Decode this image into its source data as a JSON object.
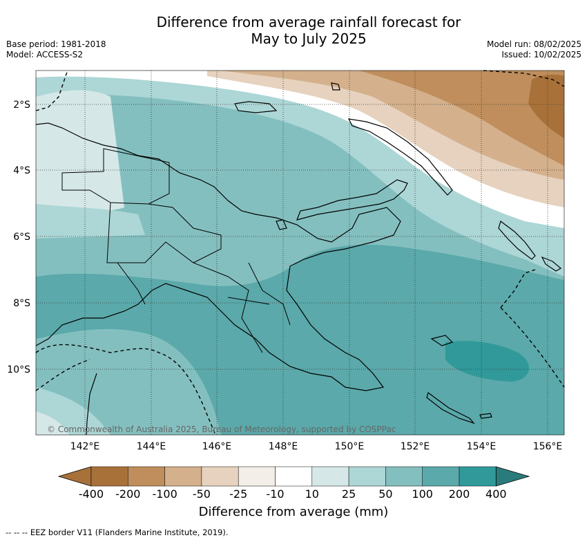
{
  "title_line1": "Difference from average rainfall forecast for",
  "title_line2": "May to July 2025",
  "base_period": "Base period: 1981-2018",
  "model": "Model: ACCESS-S2",
  "model_run": "Model run: 08/02/2025",
  "issued": "Issued: 10/02/2025",
  "copyright": "© Commonwealth of Australia 2025, Bureau of Meteorology, supported by COSPPac",
  "lon_labels": [
    "142°E",
    "144°E",
    "146°E",
    "148°E",
    "150°E",
    "152°E",
    "154°E",
    "156°E"
  ],
  "lat_labels": [
    "2°S",
    "4°S",
    "6°S",
    "8°S",
    "10°S"
  ],
  "legend": {
    "title": "Difference from average (mm)",
    "tick_labels": [
      "-400",
      "-200",
      "-100",
      "-50",
      "-25",
      "-10",
      "10",
      "25",
      "50",
      "100",
      "200",
      "400"
    ],
    "colors": [
      "#a8713a",
      "#bf8e5c",
      "#d4b08c",
      "#e6d2be",
      "#f3eee8",
      "#ffffff",
      "#d5e8e7",
      "#add6d6",
      "#84bfbf",
      "#5ba9aa",
      "#31999a",
      "#2a7b7b"
    ]
  },
  "footer": "--  --  -- EEZ border V11 (Flanders Marine Institute, 2019)."
}
